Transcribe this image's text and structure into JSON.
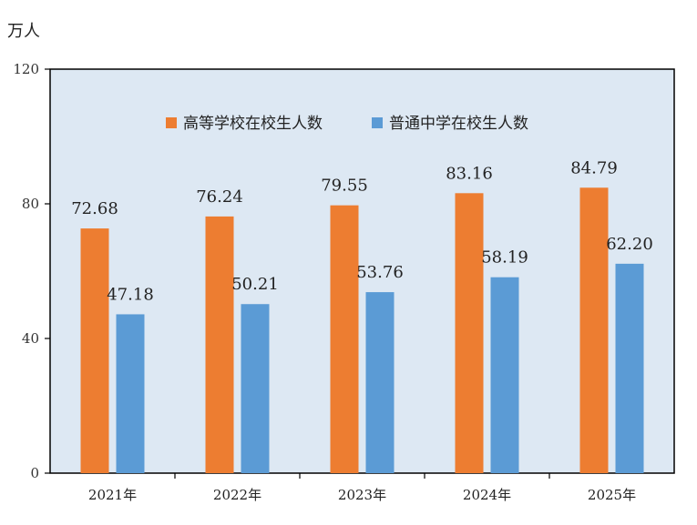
{
  "unit_label": "万人",
  "colors": {
    "plot_bg": "#dde8f3",
    "axis": "#000000",
    "series1": "#ed7d31",
    "series2": "#5b9bd5"
  },
  "chart_data": {
    "type": "bar",
    "categories": [
      "2021年",
      "2022年",
      "2023年",
      "2024年",
      "2025年"
    ],
    "series": [
      {
        "name": "高等学校在校生人数",
        "values": [
          72.68,
          76.24,
          79.55,
          83.16,
          84.79
        ],
        "labels": [
          "72.68",
          "76.24",
          "79.55",
          "83.16",
          "84.79"
        ]
      },
      {
        "name": "普通中学在校生人数",
        "values": [
          47.18,
          50.21,
          53.76,
          58.19,
          62.2
        ],
        "labels": [
          "47.18",
          "50.21",
          "53.76",
          "58.19",
          "62.20"
        ]
      }
    ],
    "ylim": [
      0,
      120
    ],
    "yticks": [
      0,
      40,
      80,
      120
    ],
    "grid": false,
    "legend_position": "top"
  }
}
